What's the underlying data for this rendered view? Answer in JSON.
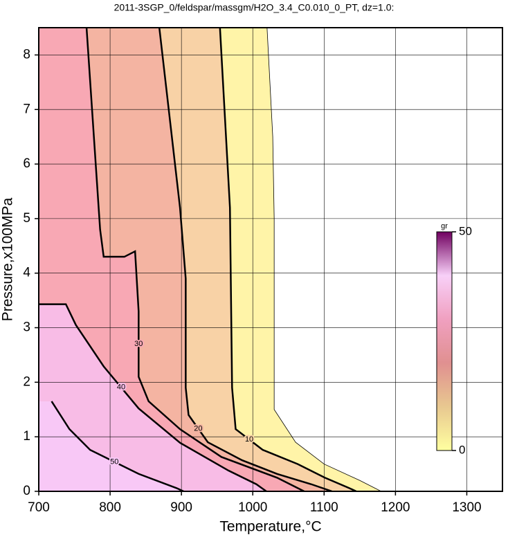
{
  "chart_data": {
    "type": "contour",
    "title": "2011-3SGP_0/feldspar/massgm/H2O_3.4_C0.010_0_PT, dz=1.0:",
    "x_label": "Temperature,°C",
    "y_label": "Pressure,x100MPa",
    "xlim": [
      700,
      1350
    ],
    "ylim": [
      0,
      8.5
    ],
    "xticks": [
      700,
      800,
      900,
      1000,
      1100,
      1200,
      1300
    ],
    "yticks": [
      0,
      1,
      2,
      3,
      4,
      5,
      6,
      7,
      8
    ],
    "grid": true,
    "contours": [
      {
        "level": 0,
        "color": "#fff4a8",
        "x": [
          1020,
          1028,
          1030,
          1030,
          1060,
          1100,
          1150,
          1180
        ],
        "y": [
          8.5,
          6.5,
          5,
          1.5,
          0.9,
          0.5,
          0.2,
          0
        ]
      },
      {
        "level": 10,
        "color": "#f8d2a6",
        "x": [
          954,
          968,
          971,
          976,
          1014,
          1063,
          1101,
          1135,
          1145
        ],
        "y": [
          8.5,
          5.2,
          1.9,
          1.14,
          0.76,
          0.5,
          0.25,
          0.06,
          0
        ]
      },
      {
        "level": 20,
        "color": "#f4b4a2",
        "x": [
          869,
          898,
          906,
          906,
          910,
          937,
          985,
          1034,
          1082,
          1111
        ],
        "y": [
          8.5,
          5.2,
          3.9,
          1.9,
          1.4,
          0.9,
          0.57,
          0.32,
          0.13,
          0
        ]
      },
      {
        "level": 30,
        "color": "#f8a8b4",
        "x": [
          767,
          786,
          791,
          820,
          835,
          840,
          840,
          854,
          898,
          956,
          1034,
          1072
        ],
        "y": [
          8.5,
          4.8,
          4.3,
          4.3,
          4.4,
          3.3,
          2.1,
          1.65,
          1.14,
          0.63,
          0.25,
          0
        ]
      },
      {
        "level": 40,
        "color": "#f8bce6",
        "x": [
          700,
          738,
          752,
          791,
          840,
          898,
          966,
          1005,
          1019
        ],
        "y": [
          3.43,
          3.43,
          3.05,
          2.29,
          1.52,
          0.89,
          0.38,
          0.13,
          0
        ]
      },
      {
        "level": 50,
        "color": "#f8c8f6",
        "x": [
          718,
          743,
          772,
          840,
          893,
          903
        ],
        "y": [
          1.65,
          1.14,
          0.76,
          0.32,
          0.06,
          0
        ]
      }
    ],
    "colorbar": {
      "label": "gr",
      "ticks": [
        0,
        50
      ],
      "colors": [
        "#ffffa0",
        "#e8c890",
        "#e09090",
        "#f0a0c0",
        "#f8d0f8",
        "#700060"
      ]
    }
  }
}
